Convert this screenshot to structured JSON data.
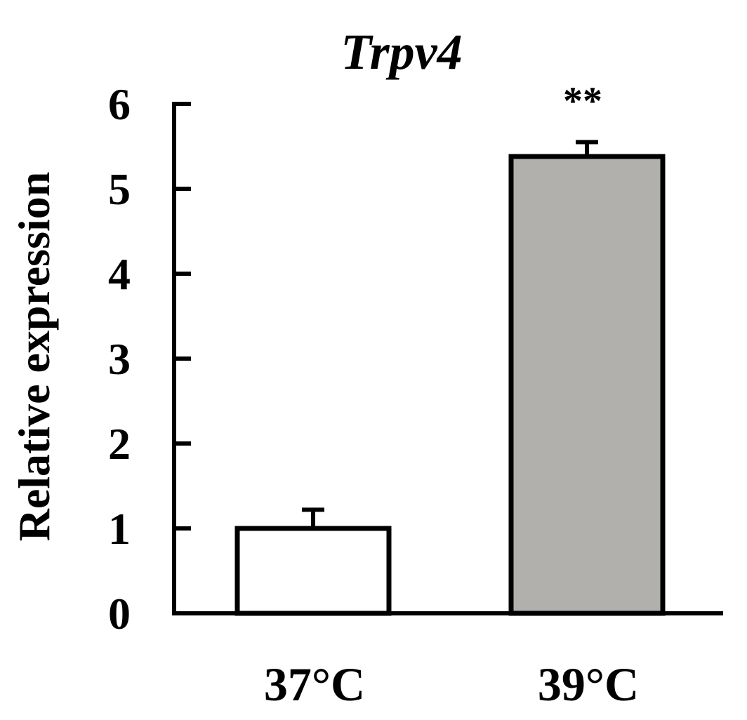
{
  "chart_data": {
    "type": "bar",
    "title": "Trpv4",
    "xlabel": "",
    "ylabel": "Relative expression",
    "ylim": [
      0,
      6
    ],
    "yticks": [
      0,
      1,
      2,
      3,
      4,
      5,
      6
    ],
    "categories": [
      "37°C",
      "39°C"
    ],
    "values": [
      1.0,
      5.38
    ],
    "errors": [
      0.22,
      0.17
    ],
    "annotations": [
      "",
      "**"
    ],
    "colors": [
      "#ffffff",
      "#b2b0ad"
    ],
    "edge_color": "#000000",
    "grid": false,
    "legend": "none"
  }
}
